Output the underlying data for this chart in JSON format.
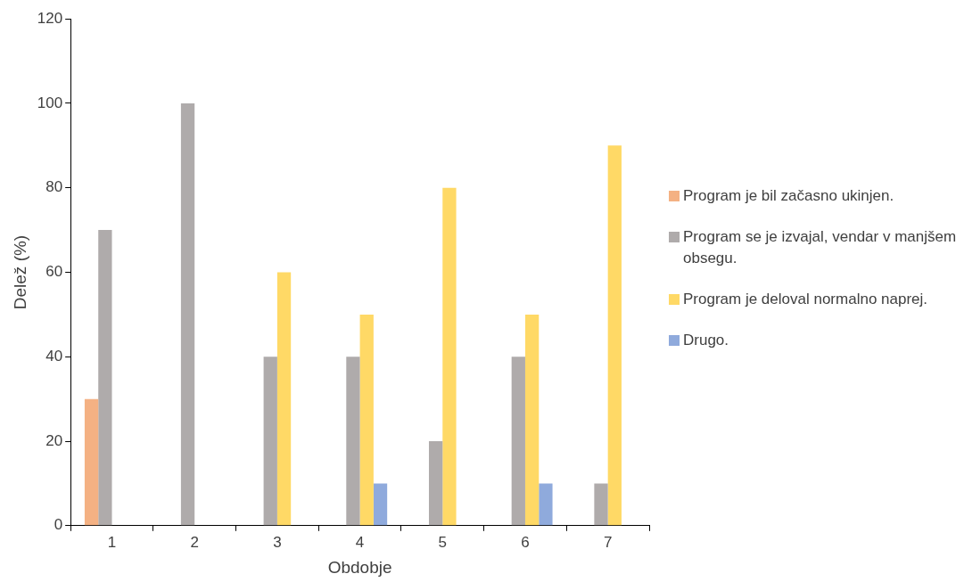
{
  "chart_data": {
    "type": "bar",
    "xlabel": "Obdobje",
    "ylabel": "Delež (%)",
    "categories": [
      "1",
      "2",
      "3",
      "4",
      "5",
      "6",
      "7"
    ],
    "series": [
      {
        "name": "Program je bil začasno ukinjen.",
        "color": "#f4b183",
        "values": [
          30,
          null,
          null,
          null,
          null,
          null,
          null
        ]
      },
      {
        "name": "Program se je izvajal, vendar v manjšem obsegu.",
        "color": "#afabab",
        "values": [
          70,
          100,
          40,
          40,
          20,
          40,
          10
        ]
      },
      {
        "name": "Program je deloval normalno naprej.",
        "color": "#ffd966",
        "values": [
          null,
          null,
          60,
          50,
          80,
          50,
          90
        ]
      },
      {
        "name": "Drugo.",
        "color": "#8faadc",
        "values": [
          null,
          null,
          null,
          10,
          null,
          10,
          null
        ]
      }
    ],
    "ylim": [
      0,
      120
    ],
    "yticks": [
      0,
      20,
      40,
      60,
      80,
      100,
      120
    ],
    "grid": false,
    "legend": "right"
  }
}
